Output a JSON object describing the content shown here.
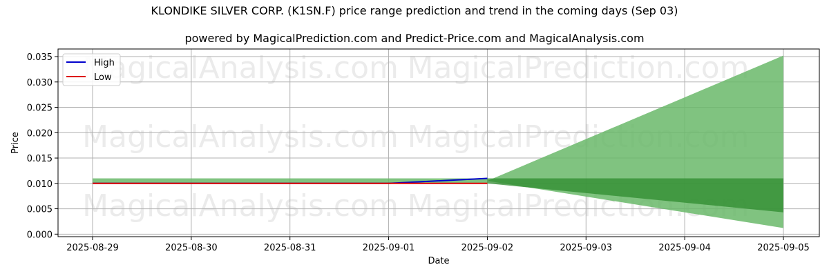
{
  "chart_data": {
    "type": "area",
    "title": "KLONDIKE SILVER CORP. (K1SN.F) price range prediction and trend in the coming days (Sep 03)",
    "subtitle": "powered by MagicalPrediction.com and Predict-Price.com and MagicalAnalysis.com",
    "xlabel": "Date",
    "ylabel": "Price",
    "x_ticks": [
      "2025-08-29",
      "2025-08-30",
      "2025-08-31",
      "2025-09-01",
      "2025-09-02",
      "2025-09-03",
      "2025-09-04",
      "2025-09-05"
    ],
    "y_ticks": [
      "0.000",
      "0.005",
      "0.010",
      "0.015",
      "0.020",
      "0.025",
      "0.030",
      "0.035"
    ],
    "ylim": [
      -0.0005,
      0.0365
    ],
    "grid": true,
    "legend_position": "top-left",
    "series": [
      {
        "name": "High",
        "color": "#0000cc",
        "x": [
          "2025-08-29",
          "2025-09-01",
          "2025-09-02"
        ],
        "values": [
          0.01,
          0.01,
          0.011
        ]
      },
      {
        "name": "Low",
        "color": "#dd0000",
        "x": [
          "2025-08-29",
          "2025-09-01",
          "2025-09-02"
        ],
        "values": [
          0.01,
          0.01,
          0.01
        ]
      }
    ],
    "bands": [
      {
        "color": "#6ab96a",
        "opacity": 0.85,
        "x": [
          "2025-08-29",
          "2025-09-02"
        ],
        "upper": [
          0.011,
          0.011
        ],
        "lower": [
          0.01,
          0.01
        ]
      },
      {
        "color": "#6ab96a",
        "opacity": 0.85,
        "x": [
          "2025-09-02",
          "2025-09-05"
        ],
        "upper": [
          0.0105,
          0.0352
        ],
        "lower": [
          0.0105,
          0.0012
        ]
      },
      {
        "color": "#2e8b2e",
        "opacity": 0.75,
        "x": [
          "2025-09-02",
          "2025-09-05"
        ],
        "upper": [
          0.011,
          0.011
        ],
        "lower": [
          0.01,
          0.0043
        ]
      }
    ],
    "watermarks": [
      "MagicalAnalysis.com",
      "MagicalPrediction.com"
    ]
  }
}
